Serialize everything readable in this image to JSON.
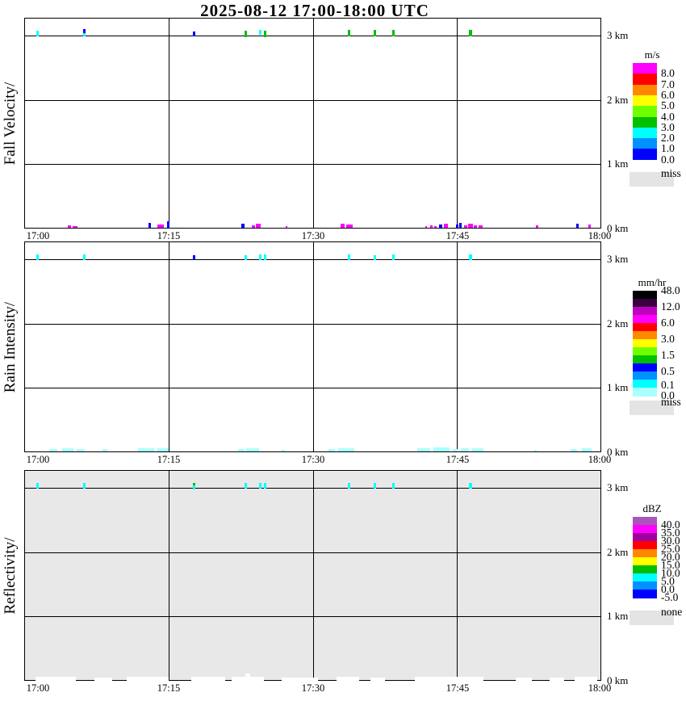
{
  "title": "2025-08-12  17:00-18:00 UTC",
  "palette": {
    "M": "#FF00FF",
    "B": "#0000FF",
    "C": "#00FFFF",
    "G": "#00C000",
    "PC": "#AAFFFF",
    "W": "#FFFFFF"
  },
  "mark_format": "[x_px, width_px, height_px, palette_key, dy_from_ref_line_px]",
  "x_axis": {
    "start": "17:00",
    "end": "18:00",
    "ticks": [
      "17:00",
      "17:15",
      "17:30",
      "17:45",
      "18:00"
    ]
  },
  "y_axis": {
    "ticks_top_to_bottom": [
      "3 km",
      "2 km",
      "1 km",
      "0 km"
    ],
    "range_km": [
      0,
      3
    ]
  },
  "chart_data": [
    {
      "type": "heatmap",
      "title": "Fall Velocity",
      "ylabel": "Fall Velocity/",
      "background": "#FFFFFF",
      "colorbar": {
        "title": "m/s",
        "colors": [
          "#FF00FF",
          "#FF0000",
          "#FF8800",
          "#FFFF00",
          "#70FF00",
          "#00C000",
          "#00FFFF",
          "#0090FF",
          "#0000FF"
        ],
        "tick_labels": [
          "8.0",
          "7.0",
          "6.0",
          "5.0",
          "4.0",
          "3.0",
          "2.0",
          "1.0",
          "0.0"
        ],
        "tick_positions": [
          1,
          2,
          3,
          4,
          5,
          6,
          7,
          8,
          9
        ],
        "missing_label": "miss",
        "missing_color": "#E4E4E4"
      },
      "echo_marks_3km": [
        [
          46,
          3,
          7,
          "C",
          -6
        ],
        [
          104,
          3,
          5,
          "B",
          -8
        ],
        [
          104,
          3,
          4,
          "C",
          -3
        ],
        [
          240,
          3,
          6,
          "B",
          -5
        ],
        [
          304,
          3,
          8,
          "G",
          -6
        ],
        [
          322,
          3,
          6,
          "C",
          -7
        ],
        [
          328,
          3,
          8,
          "G",
          -6
        ],
        [
          432,
          3,
          8,
          "G",
          -7
        ],
        [
          464,
          3,
          8,
          "G",
          -7
        ],
        [
          487,
          3,
          8,
          "G",
          -7
        ],
        [
          582,
          4,
          8,
          "G",
          -7
        ]
      ],
      "surface_marks_0km": [
        [
          85,
          4,
          3,
          "M",
          -4
        ],
        [
          91,
          6,
          2,
          "M",
          -3
        ],
        [
          185,
          3,
          6,
          "B",
          -7
        ],
        [
          196,
          8,
          4,
          "M",
          -5
        ],
        [
          208,
          3,
          8,
          "B",
          -9
        ],
        [
          300,
          4,
          5,
          "B",
          -6
        ],
        [
          313,
          4,
          3,
          "M",
          -4
        ],
        [
          318,
          6,
          5,
          "M",
          -6
        ],
        [
          355,
          2,
          2,
          "M",
          -3
        ],
        [
          423,
          5,
          5,
          "M",
          -6
        ],
        [
          430,
          8,
          4,
          "M",
          -5
        ],
        [
          528,
          2,
          2,
          "M",
          -3
        ],
        [
          534,
          3,
          3,
          "M",
          -4
        ],
        [
          539,
          3,
          2,
          "M",
          -3
        ],
        [
          545,
          4,
          4,
          "B",
          -5
        ],
        [
          551,
          5,
          5,
          "M",
          -6
        ],
        [
          566,
          3,
          4,
          "B",
          -5
        ],
        [
          570,
          3,
          6,
          "B",
          -7
        ],
        [
          576,
          4,
          3,
          "M",
          -4
        ],
        [
          581,
          6,
          5,
          "M",
          -6
        ],
        [
          588,
          4,
          3,
          "M",
          -4
        ],
        [
          594,
          5,
          3,
          "M",
          -4
        ],
        [
          665,
          3,
          3,
          "M",
          -4
        ],
        [
          715,
          3,
          5,
          "B",
          -6
        ],
        [
          730,
          3,
          4,
          "M",
          -5
        ]
      ]
    },
    {
      "type": "heatmap",
      "title": "Rain Intensity",
      "ylabel": "Rain Intensity/",
      "background": "#FFFFFF",
      "colorbar": {
        "title": "mm/hr",
        "colors": [
          "#000000",
          "#3A0040",
          "#C000C0",
          "#FF00FF",
          "#FF0000",
          "#FF8800",
          "#FFFF00",
          "#70FF00",
          "#00C000",
          "#0000FF",
          "#0090FF",
          "#00FFFF",
          "#AAFFFF"
        ],
        "tick_labels": [
          "48.0",
          "12.0",
          "6.0",
          "3.0",
          "1.5",
          "0.5",
          "0.1",
          "0.0"
        ],
        "tick_positions": [
          0,
          2,
          4,
          6,
          8,
          10,
          11.7,
          13
        ],
        "missing_label": "miss",
        "missing_color": "#E4E4E4"
      },
      "echo_marks_3km": [
        [
          46,
          3,
          7,
          "C",
          -6
        ],
        [
          104,
          3,
          7,
          "C",
          -6
        ],
        [
          240,
          3,
          6,
          "B",
          -5
        ],
        [
          304,
          3,
          6,
          "C",
          -5
        ],
        [
          322,
          3,
          7,
          "C",
          -6
        ],
        [
          328,
          3,
          7,
          "C",
          -6
        ],
        [
          432,
          3,
          7,
          "C",
          -6
        ],
        [
          464,
          3,
          6,
          "C",
          -5
        ],
        [
          487,
          3,
          7,
          "C",
          -6
        ],
        [
          582,
          4,
          7,
          "C",
          -6
        ]
      ],
      "surface_marks_0km": [
        [
          62,
          10,
          3,
          "PC",
          -4
        ],
        [
          78,
          14,
          4,
          "PC",
          -5
        ],
        [
          96,
          10,
          3,
          "PC",
          -4
        ],
        [
          128,
          6,
          3,
          "PC",
          -4
        ],
        [
          172,
          20,
          4,
          "PC",
          -5
        ],
        [
          196,
          14,
          4,
          "PC",
          -5
        ],
        [
          296,
          8,
          3,
          "PC",
          -4
        ],
        [
          306,
          16,
          4,
          "PC",
          -5
        ],
        [
          350,
          4,
          2,
          "PC",
          -3
        ],
        [
          408,
          8,
          3,
          "PC",
          -4
        ],
        [
          420,
          20,
          4,
          "PC",
          -5
        ],
        [
          518,
          16,
          4,
          "PC",
          -5
        ],
        [
          538,
          20,
          5,
          "PC",
          -6
        ],
        [
          562,
          6,
          3,
          "PC",
          -4
        ],
        [
          572,
          10,
          4,
          "PC",
          -5
        ],
        [
          586,
          14,
          4,
          "PC",
          -5
        ],
        [
          663,
          3,
          2,
          "PC",
          -3
        ],
        [
          708,
          8,
          3,
          "PC",
          -4
        ],
        [
          722,
          12,
          4,
          "PC",
          -5
        ]
      ]
    },
    {
      "type": "heatmap",
      "title": "Reflectivity",
      "ylabel": "Reflectivity/",
      "background": "#E8E8E8",
      "colorbar": {
        "title": "dBZ",
        "colors": [
          "#AA55BB",
          "#FF00FF",
          "#A000A0",
          "#FF0000",
          "#FF8800",
          "#FFFF00",
          "#00C000",
          "#00FFFF",
          "#0090FF",
          "#0000FF"
        ],
        "tick_labels": [
          "40.0",
          "35.0",
          "30.0",
          "25.0",
          "20.0",
          "15.0",
          "10.0",
          "5.0",
          "0.0",
          "-5.0"
        ],
        "tick_positions": [
          1,
          2,
          3,
          4,
          5,
          6,
          7,
          8,
          9,
          10
        ],
        "missing_label": "none",
        "missing_color": "#E4E4E4"
      },
      "echo_marks_3km": [
        [
          46,
          3,
          7,
          "C",
          -6
        ],
        [
          104,
          3,
          7,
          "C",
          -6
        ],
        [
          240,
          3,
          3,
          "G",
          -6
        ],
        [
          240,
          3,
          5,
          "C",
          -3
        ],
        [
          304,
          3,
          7,
          "C",
          -6
        ],
        [
          322,
          3,
          7,
          "C",
          -6
        ],
        [
          328,
          3,
          7,
          "C",
          -6
        ],
        [
          432,
          3,
          7,
          "C",
          -6
        ],
        [
          464,
          3,
          7,
          "C",
          -6
        ],
        [
          487,
          3,
          7,
          "C",
          -6
        ],
        [
          582,
          4,
          7,
          "C",
          -6
        ]
      ],
      "surface_marks_0km": [
        [
          45,
          50,
          5,
          "W",
          -5
        ],
        [
          118,
          22,
          4,
          "W",
          -4
        ],
        [
          158,
          52,
          5,
          "W",
          -5
        ],
        [
          238,
          42,
          5,
          "W",
          -5
        ],
        [
          288,
          40,
          5,
          "W",
          -5
        ],
        [
          305,
          6,
          9,
          "W",
          -9
        ],
        [
          350,
          45,
          4,
          "W",
          -4
        ],
        [
          418,
          28,
          5,
          "W",
          -5
        ],
        [
          460,
          18,
          4,
          "W",
          -4
        ],
        [
          515,
          85,
          5,
          "W",
          -5
        ],
        [
          640,
          20,
          4,
          "W",
          -4
        ],
        [
          682,
          18,
          4,
          "W",
          -4
        ],
        [
          713,
          28,
          5,
          "W",
          -5
        ]
      ]
    }
  ]
}
